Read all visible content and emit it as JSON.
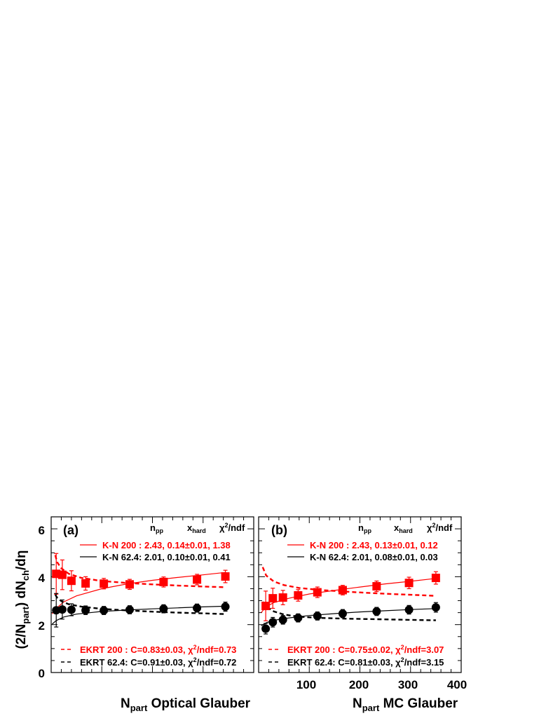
{
  "colors": {
    "red": "#ff0000",
    "black": "#000000"
  },
  "ylabel_parts": {
    "a": "(2/N",
    "b": "part",
    "c": ") dN",
    "d": "ch",
    "e": "/dη"
  },
  "y_ticks": [
    "0",
    "2",
    "4",
    "6"
  ],
  "x_ticks_b": [
    "100",
    "200",
    "300",
    "400"
  ],
  "panels": [
    {
      "tag": "(a)",
      "xlabel_sub": "part",
      "xlabel_text": "Optical Glauber",
      "header": {
        "npp": "n",
        "npp_sub": "pp",
        "xhard": "x",
        "xhard_sub": "hard",
        "chi": "χ",
        "chi_sup": "2",
        "chi_rest": "/ndf"
      },
      "legend_kn": [
        {
          "text": "K-N 200 : 2.43, 0.14±0.01, 1.38",
          "color": "red"
        },
        {
          "text": "K-N 62.4: 2.01, 0.10±0.01, 0.41",
          "color": "black"
        }
      ],
      "legend_ekrt": [
        {
          "pre": "EKRT 200 : C=0.83±0.03, χ",
          "sup": "2",
          "post": "/ndf=0.73",
          "color": "red"
        },
        {
          "pre": "EKRT 62.4: C=0.91±0.03, χ",
          "sup": "2",
          "post": "/ndf=0.72",
          "color": "black"
        }
      ]
    },
    {
      "tag": "(b)",
      "xlabel_sub": "part",
      "xlabel_text": "MC Glauber",
      "header": {
        "npp": "n",
        "npp_sub": "pp",
        "xhard": "x",
        "xhard_sub": "hard",
        "chi": "χ",
        "chi_sup": "2",
        "chi_rest": "/ndf"
      },
      "legend_kn": [
        {
          "text": "K-N 200 : 2.43, 0.13±0.01, 0.12",
          "color": "red"
        },
        {
          "text": "K-N 62.4: 2.01, 0.08±0.01, 0.03",
          "color": "black"
        }
      ],
      "legend_ekrt": [
        {
          "pre": "EKRT 200 : C=0.75±0.02, χ",
          "sup": "2",
          "post": "/ndf=3.07",
          "color": "red"
        },
        {
          "pre": "EKRT 62.4: C=0.81±0.03, χ",
          "sup": "2",
          "post": "/ndf=3.15",
          "color": "black"
        }
      ]
    }
  ],
  "chart_data": [
    {
      "type": "scatter",
      "panel": "(a)",
      "xlim": [
        0,
        400
      ],
      "ylim": [
        0,
        6.5
      ],
      "series": [
        {
          "name": "200",
          "marker": "square",
          "color": "red",
          "x": [
            10,
            22,
            40,
            68,
            104,
            155,
            222,
            288,
            344
          ],
          "y": [
            4.12,
            4.08,
            3.83,
            3.72,
            3.71,
            3.68,
            3.78,
            3.88,
            4.01
          ],
          "err": [
            0.85,
            0.62,
            0.42,
            0.28,
            0.22,
            0.21,
            0.21,
            0.22,
            0.26
          ]
        },
        {
          "name": "62.4",
          "marker": "circle",
          "color": "black",
          "x": [
            10,
            22,
            40,
            68,
            104,
            155,
            222,
            288,
            344
          ],
          "y": [
            2.6,
            2.63,
            2.62,
            2.6,
            2.59,
            2.62,
            2.66,
            2.69,
            2.75
          ],
          "err": [
            0.7,
            0.4,
            0.25,
            0.18,
            0.17,
            0.17,
            0.17,
            0.17,
            0.19
          ]
        }
      ],
      "curves": [
        {
          "name": "K-N 200",
          "style": "solid",
          "color": "red",
          "x": [
            2,
            10,
            25,
            50,
            100,
            150,
            200,
            250,
            300,
            345
          ],
          "y": [
            2.45,
            2.68,
            2.95,
            3.2,
            3.5,
            3.7,
            3.85,
            3.97,
            4.08,
            4.18
          ]
        },
        {
          "name": "K-N 62.4",
          "style": "solid",
          "color": "black",
          "x": [
            2,
            10,
            25,
            50,
            100,
            150,
            200,
            250,
            300,
            345
          ],
          "y": [
            2.02,
            2.17,
            2.32,
            2.44,
            2.55,
            2.61,
            2.66,
            2.7,
            2.74,
            2.77
          ]
        },
        {
          "name": "EKRT 200",
          "style": "dashed",
          "color": "red",
          "x": [
            8,
            12,
            20,
            35,
            60,
            100,
            150,
            200,
            250,
            300,
            345
          ],
          "y": [
            4.9,
            4.6,
            4.35,
            4.12,
            3.95,
            3.82,
            3.74,
            3.68,
            3.63,
            3.59,
            3.56
          ]
        },
        {
          "name": "EKRT 62.4",
          "style": "dashed",
          "color": "black",
          "x": [
            8,
            12,
            20,
            35,
            60,
            100,
            150,
            200,
            250,
            300,
            345
          ],
          "y": [
            3.25,
            3.12,
            2.98,
            2.85,
            2.75,
            2.66,
            2.59,
            2.54,
            2.5,
            2.47,
            2.44
          ]
        }
      ]
    },
    {
      "type": "scatter",
      "panel": "(b)",
      "xlim": [
        0,
        400
      ],
      "ylim": [
        0,
        6.5
      ],
      "series": [
        {
          "name": "200",
          "marker": "square",
          "color": "red",
          "x": [
            14,
            28,
            48,
            78,
            116,
            166,
            233,
            297,
            350
          ],
          "y": [
            2.78,
            3.1,
            3.13,
            3.22,
            3.35,
            3.44,
            3.6,
            3.74,
            3.95
          ],
          "err": [
            0.62,
            0.42,
            0.3,
            0.24,
            0.22,
            0.2,
            0.22,
            0.24,
            0.26
          ]
        },
        {
          "name": "62.4",
          "marker": "circle",
          "color": "black",
          "x": [
            14,
            28,
            48,
            78,
            116,
            166,
            233,
            297,
            350
          ],
          "y": [
            1.83,
            2.1,
            2.2,
            2.28,
            2.36,
            2.46,
            2.55,
            2.62,
            2.72
          ],
          "err": [
            0.22,
            0.2,
            0.18,
            0.17,
            0.17,
            0.17,
            0.17,
            0.18,
            0.2
          ]
        }
      ],
      "curves": [
        {
          "name": "K-N 200",
          "style": "solid",
          "color": "red",
          "x": [
            5,
            15,
            30,
            60,
            100,
            150,
            200,
            250,
            300,
            350
          ],
          "y": [
            2.5,
            2.75,
            2.92,
            3.1,
            3.28,
            3.43,
            3.57,
            3.7,
            3.81,
            3.93
          ]
        },
        {
          "name": "K-N 62.4",
          "style": "solid",
          "color": "black",
          "x": [
            5,
            15,
            30,
            60,
            100,
            150,
            200,
            250,
            300,
            350
          ],
          "y": [
            1.95,
            2.08,
            2.18,
            2.28,
            2.38,
            2.46,
            2.53,
            2.58,
            2.63,
            2.67
          ]
        },
        {
          "name": "EKRT 200",
          "style": "dashed",
          "color": "red",
          "x": [
            8,
            15,
            30,
            50,
            80,
            120,
            170,
            220,
            270,
            320,
            350
          ],
          "y": [
            4.4,
            4.05,
            3.8,
            3.65,
            3.53,
            3.45,
            3.38,
            3.32,
            3.27,
            3.23,
            3.2
          ]
        },
        {
          "name": "EKRT 62.4",
          "style": "dashed",
          "color": "black",
          "x": [
            8,
            15,
            30,
            50,
            80,
            120,
            170,
            220,
            270,
            320,
            350
          ],
          "y": [
            2.95,
            2.75,
            2.55,
            2.42,
            2.33,
            2.28,
            2.25,
            2.23,
            2.21,
            2.19,
            2.18
          ]
        }
      ]
    }
  ]
}
